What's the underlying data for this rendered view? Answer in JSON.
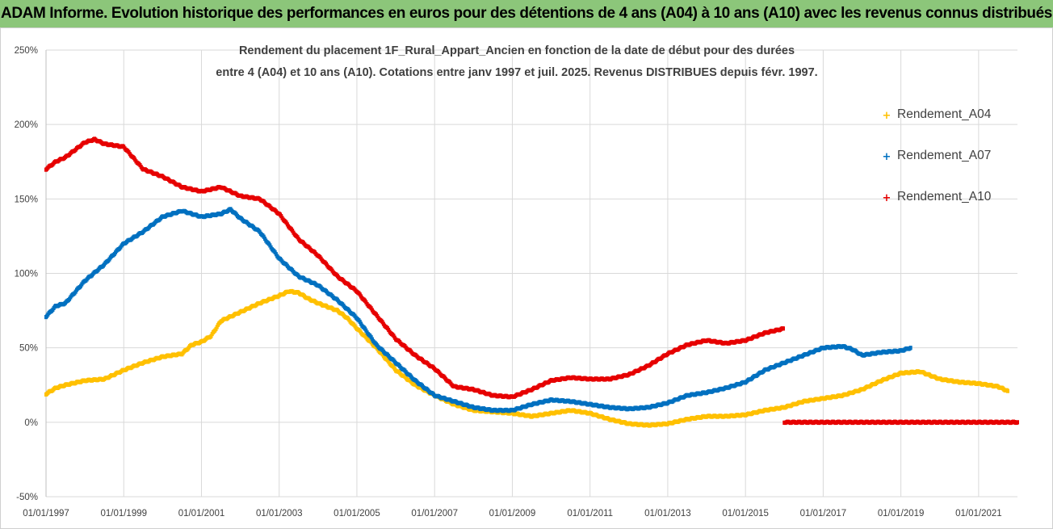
{
  "header": {
    "title": "ADAM Informe. Evolution historique des performances en euros pour des détentions de 4 ans (A04) à 10 ans (A10) avec les revenus connus distribués"
  },
  "chart_data": {
    "type": "scatter",
    "title_line1": "Rendement du placement 1F_Rural_Appart_Ancien en fonction de la date de début pour des durées",
    "title_line2": "entre 4 (A04) et 10 ans (A10).  Cotations entre janv 1997 et juil. 2025. Revenus DISTRIBUES depuis févr. 1997.",
    "x_ticks": [
      "01/01/1997",
      "01/01/1999",
      "01/01/2001",
      "01/01/2003",
      "01/01/2005",
      "01/01/2007",
      "01/01/2009",
      "01/01/2011",
      "01/01/2013",
      "01/01/2015",
      "01/01/2017",
      "01/01/2019",
      "01/01/2021"
    ],
    "y_ticks": [
      "250%",
      "200%",
      "150%",
      "100%",
      "50%",
      "0%",
      "-50%"
    ],
    "x_range": [
      "1997-01",
      "2022-01"
    ],
    "y_range": [
      -50,
      250
    ],
    "grid": true,
    "legend_position": "right",
    "colors": {
      "A04": "#ffc000",
      "A07": "#0070c0",
      "A10": "#e60000"
    },
    "series": [
      {
        "name": "Rendement_A04",
        "points": [
          [
            "1997-01",
            19
          ],
          [
            "1997-04",
            23
          ],
          [
            "1997-07",
            25
          ],
          [
            "1998-01",
            28
          ],
          [
            "1998-07",
            29
          ],
          [
            "1999-01",
            35
          ],
          [
            "1999-07",
            40
          ],
          [
            "2000-01",
            44
          ],
          [
            "2000-07",
            46
          ],
          [
            "2000-10",
            52
          ],
          [
            "2001-01",
            54
          ],
          [
            "2001-04",
            58
          ],
          [
            "2001-07",
            68
          ],
          [
            "2002-01",
            74
          ],
          [
            "2002-07",
            80
          ],
          [
            "2003-01",
            85
          ],
          [
            "2003-04",
            88
          ],
          [
            "2003-07",
            87
          ],
          [
            "2003-10",
            83
          ],
          [
            "2004-01",
            80
          ],
          [
            "2004-07",
            75
          ],
          [
            "2004-10",
            70
          ],
          [
            "2005-01",
            63
          ],
          [
            "2005-07",
            50
          ],
          [
            "2006-01",
            35
          ],
          [
            "2006-07",
            25
          ],
          [
            "2007-01",
            18
          ],
          [
            "2007-07",
            12
          ],
          [
            "2008-01",
            8
          ],
          [
            "2008-07",
            7
          ],
          [
            "2009-01",
            6
          ],
          [
            "2009-07",
            4
          ],
          [
            "2010-01",
            6
          ],
          [
            "2010-07",
            8
          ],
          [
            "2011-01",
            6
          ],
          [
            "2011-07",
            2
          ],
          [
            "2012-01",
            -1
          ],
          [
            "2012-07",
            -2
          ],
          [
            "2013-01",
            -1
          ],
          [
            "2013-07",
            2
          ],
          [
            "2014-01",
            4
          ],
          [
            "2014-07",
            4
          ],
          [
            "2015-01",
            5
          ],
          [
            "2015-07",
            8
          ],
          [
            "2016-01",
            10
          ],
          [
            "2016-07",
            14
          ],
          [
            "2017-01",
            16
          ],
          [
            "2017-07",
            18
          ],
          [
            "2018-01",
            22
          ],
          [
            "2018-07",
            28
          ],
          [
            "2019-01",
            33
          ],
          [
            "2019-07",
            34
          ],
          [
            "2020-01",
            29
          ],
          [
            "2020-07",
            27
          ],
          [
            "2021-01",
            26
          ],
          [
            "2021-07",
            24
          ],
          [
            "2021-10",
            21
          ]
        ]
      },
      {
        "name": "Rendement_A07",
        "points": [
          [
            "1997-01",
            71
          ],
          [
            "1997-04",
            78
          ],
          [
            "1997-07",
            80
          ],
          [
            "1998-01",
            95
          ],
          [
            "1998-07",
            106
          ],
          [
            "1999-01",
            120
          ],
          [
            "1999-07",
            128
          ],
          [
            "2000-01",
            138
          ],
          [
            "2000-07",
            142
          ],
          [
            "2001-01",
            138
          ],
          [
            "2001-07",
            140
          ],
          [
            "2001-10",
            143
          ],
          [
            "2002-01",
            137
          ],
          [
            "2002-07",
            128
          ],
          [
            "2003-01",
            110
          ],
          [
            "2003-07",
            98
          ],
          [
            "2004-01",
            92
          ],
          [
            "2004-07",
            82
          ],
          [
            "2005-01",
            70
          ],
          [
            "2005-07",
            52
          ],
          [
            "2006-01",
            40
          ],
          [
            "2006-07",
            28
          ],
          [
            "2007-01",
            18
          ],
          [
            "2007-07",
            14
          ],
          [
            "2008-01",
            10
          ],
          [
            "2008-07",
            8
          ],
          [
            "2009-01",
            8
          ],
          [
            "2009-07",
            12
          ],
          [
            "2010-01",
            15
          ],
          [
            "2010-07",
            14
          ],
          [
            "2011-01",
            12
          ],
          [
            "2011-07",
            10
          ],
          [
            "2012-01",
            9
          ],
          [
            "2012-07",
            10
          ],
          [
            "2013-01",
            13
          ],
          [
            "2013-07",
            18
          ],
          [
            "2014-01",
            20
          ],
          [
            "2014-07",
            23
          ],
          [
            "2015-01",
            27
          ],
          [
            "2015-07",
            35
          ],
          [
            "2016-01",
            40
          ],
          [
            "2016-07",
            45
          ],
          [
            "2017-01",
            50
          ],
          [
            "2017-07",
            51
          ],
          [
            "2017-10",
            49
          ],
          [
            "2018-01",
            45
          ],
          [
            "2018-07",
            47
          ],
          [
            "2019-01",
            48
          ],
          [
            "2019-04",
            50
          ]
        ]
      },
      {
        "name": "Rendement_A10",
        "points": [
          [
            "1997-01",
            170
          ],
          [
            "1997-04",
            175
          ],
          [
            "1997-07",
            178
          ],
          [
            "1998-01",
            188
          ],
          [
            "1998-04",
            190
          ],
          [
            "1998-07",
            187
          ],
          [
            "1999-01",
            185
          ],
          [
            "1999-07",
            170
          ],
          [
            "2000-01",
            165
          ],
          [
            "2000-07",
            158
          ],
          [
            "2001-01",
            155
          ],
          [
            "2001-07",
            158
          ],
          [
            "2002-01",
            152
          ],
          [
            "2002-07",
            150
          ],
          [
            "2003-01",
            140
          ],
          [
            "2003-07",
            123
          ],
          [
            "2004-01",
            112
          ],
          [
            "2004-07",
            98
          ],
          [
            "2005-01",
            88
          ],
          [
            "2005-07",
            72
          ],
          [
            "2006-01",
            56
          ],
          [
            "2006-07",
            45
          ],
          [
            "2007-01",
            36
          ],
          [
            "2007-07",
            24
          ],
          [
            "2008-01",
            22
          ],
          [
            "2008-07",
            18
          ],
          [
            "2009-01",
            17
          ],
          [
            "2009-07",
            22
          ],
          [
            "2010-01",
            28
          ],
          [
            "2010-07",
            30
          ],
          [
            "2011-01",
            29
          ],
          [
            "2011-07",
            29
          ],
          [
            "2012-01",
            32
          ],
          [
            "2012-07",
            38
          ],
          [
            "2013-01",
            46
          ],
          [
            "2013-07",
            52
          ],
          [
            "2014-01",
            55
          ],
          [
            "2014-07",
            53
          ],
          [
            "2015-01",
            55
          ],
          [
            "2015-07",
            60
          ],
          [
            "2016-01",
            63
          ],
          [
            "2016-01",
            0
          ],
          [
            "2017-01",
            0
          ],
          [
            "2018-01",
            0
          ],
          [
            "2019-01",
            0
          ],
          [
            "2020-01",
            0
          ],
          [
            "2021-01",
            0
          ],
          [
            "2022-01",
            0
          ]
        ]
      }
    ]
  }
}
